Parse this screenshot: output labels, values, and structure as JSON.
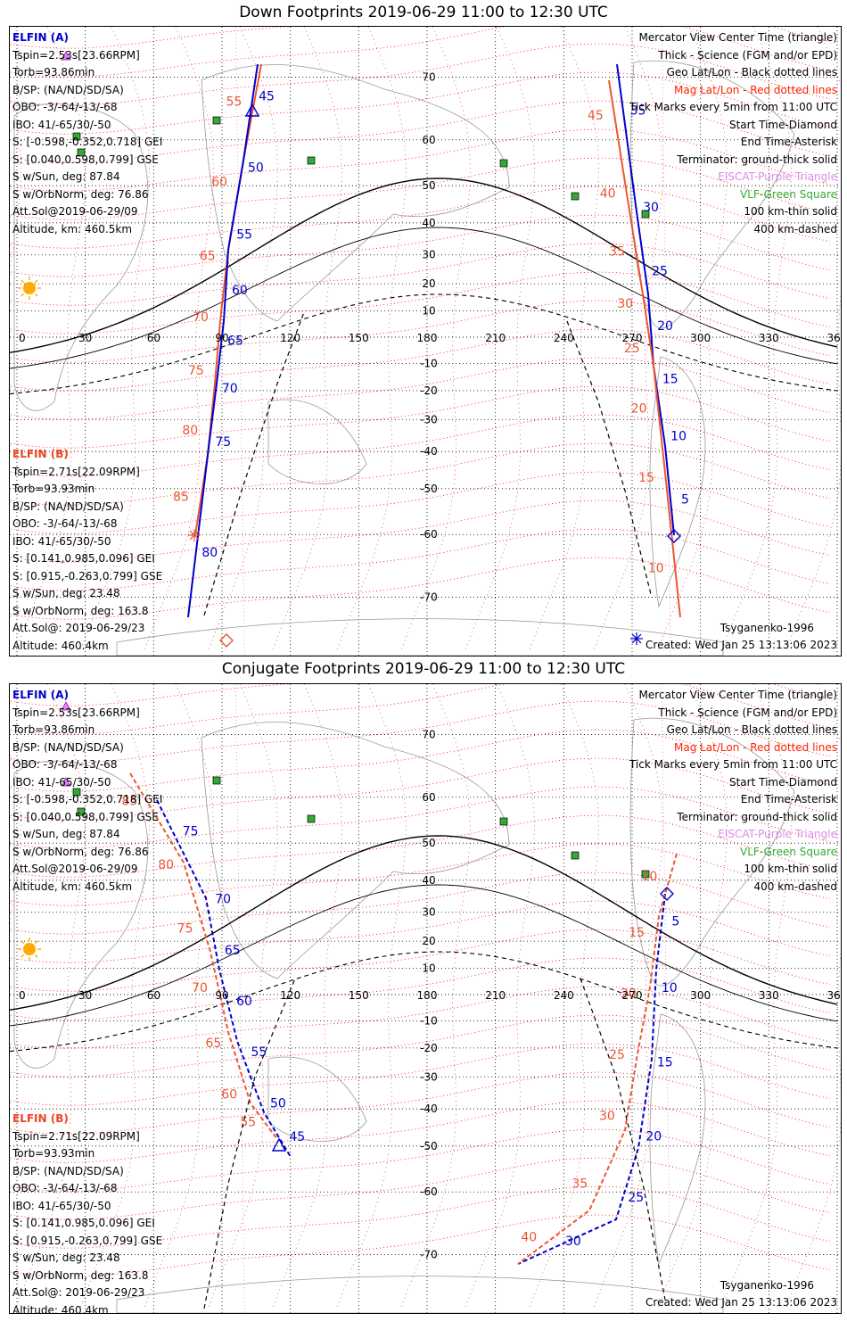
{
  "panels": [
    {
      "title": "Down Footprints 2019-06-29 11:00 to 12:30 UTC",
      "elfin_a": {
        "name": "ELFIN (A)",
        "lines": [
          "Tspin=2.53s[23.66RPM]",
          "Torb=93.86min",
          "B/SP: (NA/ND/SD/SA)",
          "OBO: -3/-64/-13/-68",
          "IBO: 41/-65/30/-50",
          "S: [-0.598,-0.352,0.718] GEI",
          "S: [0.040,0.598,0.799] GSE",
          "S w/Sun, deg: 87.84",
          "S w/OrbNorm, deg: 76.86",
          "Att.Sol@2019-06-29/09",
          "Altitude, km: 460.5km"
        ]
      },
      "elfin_b": {
        "name": "ELFIN (B)",
        "lines": [
          "Tspin=2.71s[22.09RPM]",
          "Torb=93.93min",
          "B/SP: (NA/ND/SD/SA)",
          "OBO: -3/-64/-13/-68",
          "IBO: 41/-65/30/-50",
          "S: [0.141,0.985,0.096] GEI",
          "S: [0.915,-0.263,0.799] GSE",
          "S w/Sun, deg: 23.48",
          "S w/OrbNorm, deg: 163.8",
          "Att.Sol@: 2019-06-29/23",
          "Altitude: 460.4km"
        ]
      },
      "footer_left": "",
      "footer_model": "Tsyganenko-1996",
      "footer_created": "Created: Wed Jan 25 13:13:06 2023"
    },
    {
      "title": "Conjugate Footprints 2019-06-29 11:00 to 12:30 UTC",
      "elfin_a": {
        "name": "ELFIN (A)",
        "lines": [
          "Tspin=2.53s[23.66RPM]",
          "Torb=93.86min",
          "B/SP: (NA/ND/SD/SA)",
          "OBO: -3/-64/-13/-68",
          "IBO: 41/-65/30/-50",
          "S: [-0.598,-0.352,0.718] GEI",
          "S: [0.040,0.598,0.799] GSE",
          "S w/Sun, deg: 87.84",
          "S w/OrbNorm, deg: 76.86",
          "Att.Sol@2019-06-29/09",
          "Altitude, km: 460.5km"
        ]
      },
      "elfin_b": {
        "name": "ELFIN (B)",
        "lines": [
          "Tspin=2.71s[22.09RPM]",
          "Torb=93.93min",
          "B/SP: (NA/ND/SD/SA)",
          "OBO: -3/-64/-13/-68",
          "IBO: 41/-65/30/-50",
          "S: [0.141,0.985,0.096] GEI",
          "S: [0.915,-0.263,0.799] GSE",
          "S w/Sun, deg: 23.48",
          "S w/OrbNorm, deg: 163.8",
          "Att.Sol@: 2019-06-29/23",
          "Altitude: 460.4km"
        ]
      },
      "footer_model": "Tsyganenko-1996",
      "footer_created": "Created: Wed Jan 25 13:13:06 2023"
    }
  ],
  "legend": [
    {
      "text": "Mercator View Center Time (triangle)",
      "color": "#000000"
    },
    {
      "text": "Thick - Science (FGM and/or EPD)",
      "color": "#000000"
    },
    {
      "text": "Geo Lat/Lon - Black dotted lines",
      "color": "#000000"
    },
    {
      "text": "Mag Lat/Lon - Red dotted lines",
      "color": "#ff2200"
    },
    {
      "text": "Tick Marks every 5min from 11:00 UTC",
      "color": "#000000"
    },
    {
      "text": "Start Time-Diamond",
      "color": "#000000"
    },
    {
      "text": "End Time-Asterisk",
      "color": "#000000"
    },
    {
      "text": "Terminator: ground-thick solid",
      "color": "#000000"
    },
    {
      "text": "EISCAT-Purple Triangle",
      "color": "#dd88ee"
    },
    {
      "text": "VLF-Green Square",
      "color": "#33aa33"
    },
    {
      "text": "100 km-thin solid",
      "color": "#000000"
    },
    {
      "text": "400 km-dashed",
      "color": "#000000"
    }
  ],
  "map": {
    "lon_ticks": [
      "0",
      "30",
      "60",
      "90",
      "120",
      "150",
      "180",
      "210",
      "240",
      "270",
      "300",
      "330",
      "360"
    ],
    "lat_ticks": [
      "70",
      "60",
      "50",
      "40",
      "30",
      "20",
      "10",
      "-10",
      "-20",
      "-30",
      "-40",
      "-50",
      "-60",
      "-70"
    ],
    "colors": {
      "elfin_a": "#0000cc",
      "elfin_b": "#ee5533",
      "mag_grid": "#ff0000",
      "geo_grid": "#000000",
      "eiscat": "#dd88ee",
      "vlf": "#33aa33",
      "sun": "#ffaa00"
    }
  },
  "track_labels": {
    "down_a_west": [
      "45",
      "50",
      "55",
      "60",
      "65",
      "70",
      "75",
      "80"
    ],
    "down_b_west": [
      "55",
      "60",
      "65",
      "70",
      "75",
      "80",
      "85"
    ],
    "down_a_east": [
      "35",
      "30",
      "25",
      "20",
      "15",
      "10",
      "5"
    ],
    "down_b_east": [
      "45",
      "40",
      "35",
      "30",
      "25",
      "20",
      "15",
      "10"
    ],
    "conj_a_west": [
      "75",
      "70",
      "65",
      "60",
      "55",
      "50",
      "45"
    ],
    "conj_b_west": [
      "85",
      "80",
      "75",
      "70",
      "65",
      "60",
      "55"
    ],
    "conj_a_east": [
      "5",
      "10",
      "15",
      "20",
      "25",
      "30"
    ],
    "conj_b_east": [
      "10",
      "15",
      "20",
      "25",
      "30",
      "35",
      "40"
    ]
  }
}
